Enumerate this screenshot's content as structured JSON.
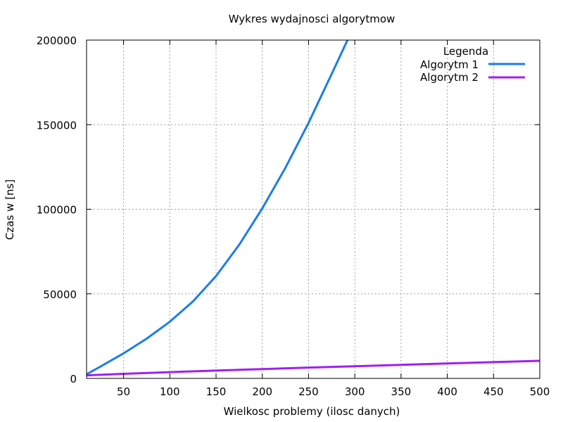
{
  "chart_data": {
    "type": "line",
    "title": "Wykres wydajnosci algorytmow",
    "xlabel": "Wielkosc problemy (ilosc danych)",
    "ylabel": "Czas w [ns]",
    "xlim": [
      10,
      500
    ],
    "ylim": [
      0,
      200000
    ],
    "xticks": [
      50,
      100,
      150,
      200,
      250,
      300,
      350,
      400,
      450,
      500
    ],
    "yticks": [
      0,
      50000,
      100000,
      150000,
      200000
    ],
    "grid": true,
    "legend": {
      "title": "Legenda",
      "placement": "top-right"
    },
    "series": [
      {
        "name": "Algorytm 1",
        "color": "#1a7ee8",
        "x": [
          10,
          25,
          50,
          75,
          100,
          125,
          150,
          175,
          200,
          225,
          250,
          275,
          293
        ],
        "y": [
          2400,
          7000,
          14800,
          23500,
          33500,
          45500,
          60500,
          79000,
          100500,
          124500,
          151000,
          180000,
          201000
        ]
      },
      {
        "name": "Algorytm 2",
        "color": "#a020f0",
        "x": [
          10,
          50,
          100,
          150,
          200,
          250,
          300,
          350,
          400,
          450,
          500
        ],
        "y": [
          1800,
          2700,
          3700,
          4600,
          5500,
          6400,
          7200,
          8000,
          8800,
          9600,
          10400
        ]
      }
    ]
  }
}
